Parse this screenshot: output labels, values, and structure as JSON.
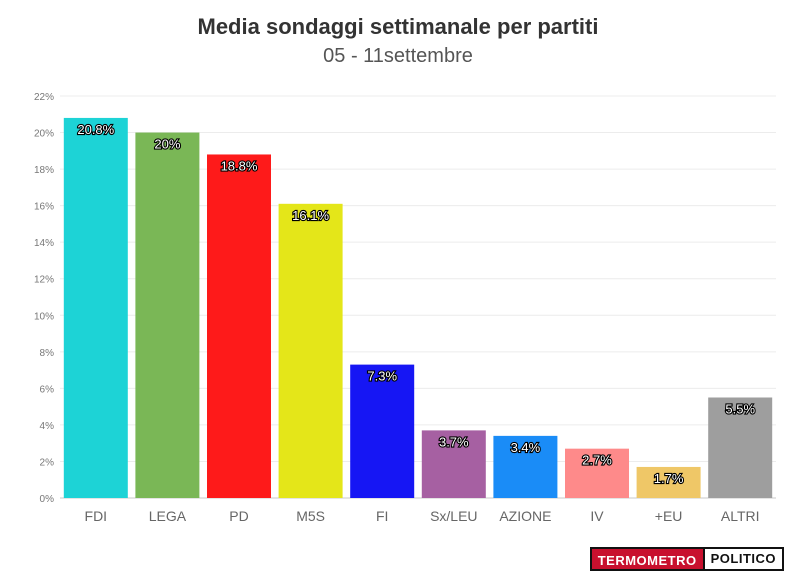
{
  "chart_data": {
    "type": "bar",
    "title": "Media sondaggi settimanale per partiti",
    "subtitle": "05 - 11settembre",
    "categories": [
      "FDI",
      "LEGA",
      "PD",
      "M5S",
      "FI",
      "Sx/LEU",
      "AZIONE",
      "IV",
      "+EU",
      "ALTRI"
    ],
    "values": [
      20.8,
      20,
      18.8,
      16.1,
      7.3,
      3.7,
      3.4,
      2.7,
      1.7,
      5.5
    ],
    "labels": [
      "20.8%",
      "20%",
      "18.8%",
      "16.1%",
      "7.3%",
      "3.7%",
      "3.4%",
      "2.7%",
      "1.7%",
      "5.5%"
    ],
    "colors": [
      "#1dd3d6",
      "#7ab756",
      "#fe1a1a",
      "#e4e619",
      "#1616f4",
      "#a660a2",
      "#1a8cf7",
      "#fe8a8a",
      "#efc767",
      "#9e9e9e"
    ],
    "ylim": [
      0,
      22
    ],
    "yticks": [
      "0%",
      "2%",
      "4%",
      "6%",
      "8%",
      "10%",
      "12%",
      "14%",
      "16%",
      "18%",
      "20%",
      "22%"
    ],
    "grid": true,
    "legend": "none"
  },
  "brand": {
    "part1": "TERMOMETRO",
    "part2": "POLITICO"
  }
}
